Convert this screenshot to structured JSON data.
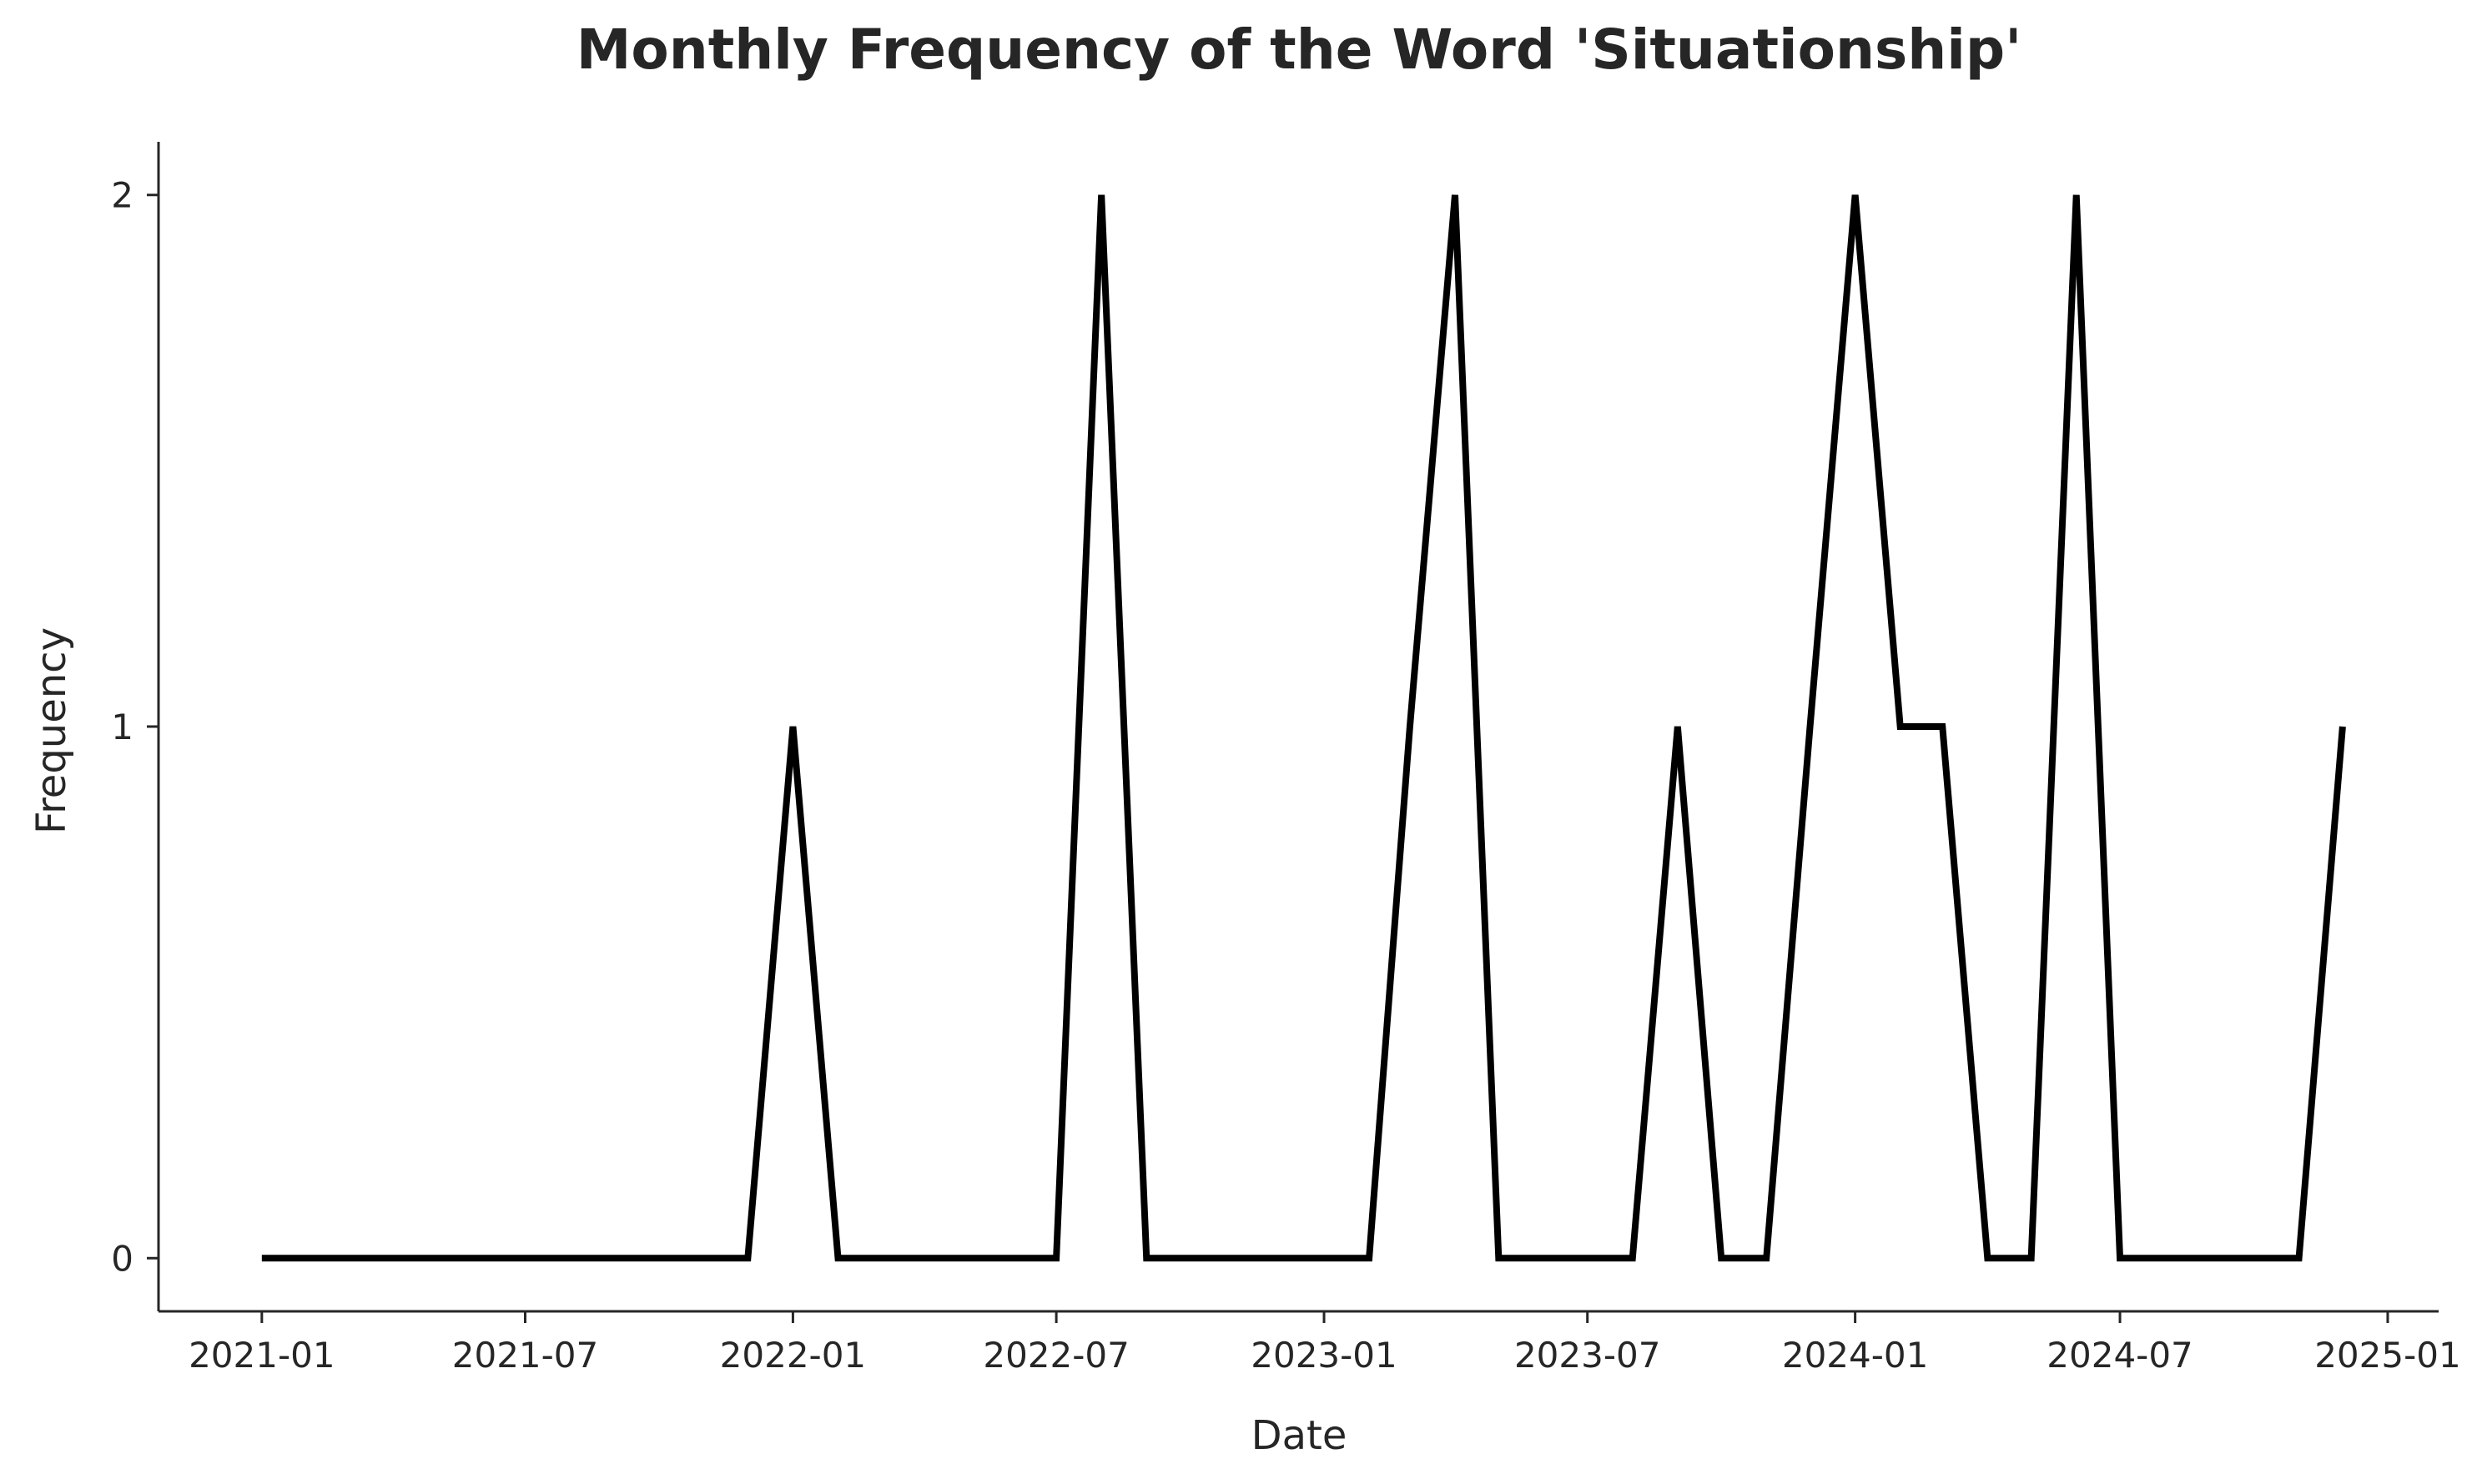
{
  "chart_data": {
    "type": "line",
    "title": "Monthly Frequency of the Word 'Situationship'",
    "xlabel": "Date",
    "ylabel": "Frequency",
    "x_tick_labels": [
      "2021-01",
      "2021-07",
      "2022-01",
      "2022-07",
      "2023-01",
      "2023-07",
      "2024-01",
      "2024-07",
      "2025-01"
    ],
    "y_tick_labels": [
      "0",
      "1",
      "2"
    ],
    "y_ticks": [
      0,
      1,
      2
    ],
    "xlim": [
      "2020-10-22",
      "2025-02-05"
    ],
    "ylim": [
      -0.1,
      2.1
    ],
    "grid": false,
    "x": [
      "2021-01",
      "2021-02",
      "2021-03",
      "2021-04",
      "2021-05",
      "2021-06",
      "2021-07",
      "2021-08",
      "2021-09",
      "2021-10",
      "2021-11",
      "2021-12",
      "2022-01",
      "2022-02",
      "2022-03",
      "2022-04",
      "2022-05",
      "2022-06",
      "2022-07",
      "2022-08",
      "2022-09",
      "2022-10",
      "2022-11",
      "2022-12",
      "2023-01",
      "2023-02",
      "2023-03",
      "2023-04",
      "2023-05",
      "2023-06",
      "2023-07",
      "2023-08",
      "2023-09",
      "2023-10",
      "2023-11",
      "2023-12",
      "2024-01",
      "2024-02",
      "2024-03",
      "2024-04",
      "2024-05",
      "2024-06",
      "2024-07",
      "2024-08",
      "2024-09",
      "2024-10",
      "2024-11",
      "2024-12"
    ],
    "series": [
      {
        "color": "#000000",
        "values": [
          0,
          0,
          0,
          0,
          0,
          0,
          0,
          0,
          0,
          0,
          0,
          0,
          1,
          0,
          0,
          0,
          0,
          0,
          0,
          2,
          0,
          0,
          0,
          0,
          0,
          0,
          1,
          2,
          0,
          0,
          0,
          0,
          1,
          0,
          0,
          1,
          2,
          1,
          1,
          0,
          0,
          2,
          0,
          0,
          0,
          0,
          0,
          1
        ]
      }
    ]
  }
}
